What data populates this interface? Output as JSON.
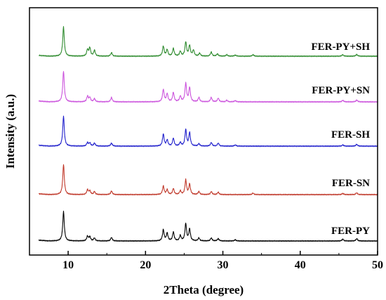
{
  "chart_data": {
    "type": "line",
    "xlabel": "2Theta (degree)",
    "ylabel": "Intensity (a.u.)",
    "xlim": [
      5,
      50
    ],
    "x_ticks": [
      10,
      20,
      30,
      40,
      50
    ],
    "y_ticks_visible": false,
    "grid": false,
    "legend": "none (series labelled inline at right)",
    "layout": "stacked offset patterns",
    "series": [
      {
        "name": "FER-PY+SH",
        "color": "#2e8b2e",
        "order_from_top": 1,
        "peaks": [
          [
            9.4,
            1.0
          ],
          [
            12.5,
            0.22
          ],
          [
            12.8,
            0.28
          ],
          [
            13.4,
            0.2
          ],
          [
            15.6,
            0.12
          ],
          [
            22.3,
            0.34
          ],
          [
            22.8,
            0.22
          ],
          [
            23.6,
            0.26
          ],
          [
            24.5,
            0.16
          ],
          [
            25.2,
            0.48
          ],
          [
            25.7,
            0.36
          ],
          [
            26.2,
            0.2
          ],
          [
            27.0,
            0.1
          ],
          [
            28.5,
            0.14
          ],
          [
            29.3,
            0.08
          ],
          [
            30.5,
            0.05
          ],
          [
            31.6,
            0.04
          ],
          [
            33.9,
            0.05
          ],
          [
            45.5,
            0.05
          ],
          [
            47.3,
            0.06
          ]
        ]
      },
      {
        "name": "FER-PY+SN",
        "color": "#cc55dd",
        "order_from_top": 2,
        "peaks": [
          [
            9.4,
            1.0
          ],
          [
            12.5,
            0.18
          ],
          [
            12.8,
            0.14
          ],
          [
            13.4,
            0.1
          ],
          [
            15.6,
            0.14
          ],
          [
            22.3,
            0.4
          ],
          [
            22.8,
            0.26
          ],
          [
            23.6,
            0.3
          ],
          [
            24.5,
            0.18
          ],
          [
            25.2,
            0.6
          ],
          [
            25.7,
            0.46
          ],
          [
            26.9,
            0.14
          ],
          [
            28.5,
            0.14
          ],
          [
            29.4,
            0.12
          ],
          [
            30.5,
            0.05
          ],
          [
            31.6,
            0.04
          ],
          [
            45.5,
            0.05
          ],
          [
            47.3,
            0.06
          ]
        ]
      },
      {
        "name": "FER-SH",
        "color": "#2020cc",
        "order_from_top": 3,
        "peaks": [
          [
            9.4,
            1.0
          ],
          [
            12.5,
            0.12
          ],
          [
            12.8,
            0.1
          ],
          [
            13.4,
            0.1
          ],
          [
            15.6,
            0.1
          ],
          [
            22.3,
            0.4
          ],
          [
            22.8,
            0.2
          ],
          [
            23.6,
            0.26
          ],
          [
            24.5,
            0.12
          ],
          [
            25.2,
            0.54
          ],
          [
            25.7,
            0.44
          ],
          [
            26.9,
            0.08
          ],
          [
            28.5,
            0.12
          ],
          [
            29.4,
            0.1
          ],
          [
            31.6,
            0.04
          ],
          [
            45.5,
            0.04
          ],
          [
            47.3,
            0.06
          ]
        ]
      },
      {
        "name": "FER-SN",
        "color": "#c0392b",
        "order_from_top": 4,
        "peaks": [
          [
            9.4,
            1.0
          ],
          [
            12.5,
            0.16
          ],
          [
            12.8,
            0.12
          ],
          [
            13.4,
            0.1
          ],
          [
            15.6,
            0.12
          ],
          [
            22.3,
            0.28
          ],
          [
            22.8,
            0.16
          ],
          [
            23.6,
            0.2
          ],
          [
            24.5,
            0.12
          ],
          [
            25.2,
            0.48
          ],
          [
            25.7,
            0.34
          ],
          [
            26.9,
            0.1
          ],
          [
            28.5,
            0.1
          ],
          [
            29.4,
            0.08
          ],
          [
            33.9,
            0.05
          ],
          [
            45.5,
            0.04
          ],
          [
            47.3,
            0.06
          ]
        ]
      },
      {
        "name": "FER-PY",
        "color": "#000000",
        "order_from_top": 5,
        "peaks": [
          [
            9.4,
            1.0
          ],
          [
            12.5,
            0.16
          ],
          [
            12.8,
            0.14
          ],
          [
            13.4,
            0.1
          ],
          [
            15.6,
            0.12
          ],
          [
            22.3,
            0.38
          ],
          [
            22.8,
            0.26
          ],
          [
            23.6,
            0.3
          ],
          [
            24.5,
            0.18
          ],
          [
            25.2,
            0.58
          ],
          [
            25.7,
            0.4
          ],
          [
            26.9,
            0.1
          ],
          [
            28.5,
            0.1
          ],
          [
            29.4,
            0.08
          ],
          [
            31.6,
            0.04
          ],
          [
            45.5,
            0.06
          ],
          [
            47.3,
            0.08
          ]
        ]
      }
    ]
  }
}
